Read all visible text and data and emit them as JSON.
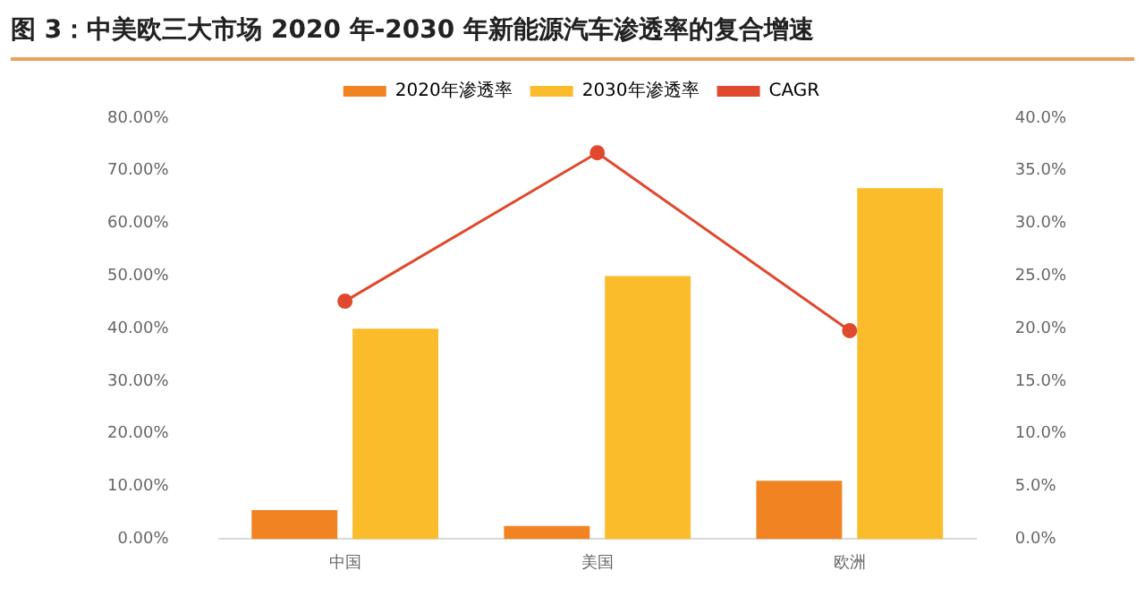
{
  "chart_data": {
    "type": "bar",
    "title": "图 3：中美欧三大市场 2020 年-2030 年新能源汽车渗透率的复合增速",
    "categories": [
      "中国",
      "美国",
      "欧洲"
    ],
    "series": [
      {
        "name": "2020年渗透率",
        "color": "#f28322",
        "values": [
          5.5,
          2.5,
          11.1
        ]
      },
      {
        "name": "2030年渗透率",
        "color": "#fbbc2c",
        "values": [
          40,
          50,
          66.7
        ]
      },
      {
        "name": "CAGR",
        "type": "line",
        "axis": "y2",
        "color": "#e0492d",
        "values": [
          22.6,
          36.7,
          19.8
        ]
      }
    ],
    "ylim": [
      0,
      80
    ],
    "yticks": [
      {
        "value": 0,
        "label": "0.00%"
      },
      {
        "value": 10,
        "label": "10.00%"
      },
      {
        "value": 20,
        "label": "20.00%"
      },
      {
        "value": 30,
        "label": "30.00%"
      },
      {
        "value": 40,
        "label": "40.00%"
      },
      {
        "value": 50,
        "label": "50.00%"
      },
      {
        "value": 60,
        "label": "60.00%"
      },
      {
        "value": 70,
        "label": "70.00%"
      },
      {
        "value": 80,
        "label": "80.00%"
      }
    ],
    "y2lim": [
      0,
      40
    ],
    "y2ticks": [
      {
        "value": 0,
        "label": "0.0%"
      },
      {
        "value": 5,
        "label": "5.0%"
      },
      {
        "value": 10,
        "label": "10.0%"
      },
      {
        "value": 15,
        "label": "15.0%"
      },
      {
        "value": 20,
        "label": "20.0%"
      },
      {
        "value": 25,
        "label": "25.0%"
      },
      {
        "value": 30,
        "label": "30.0%"
      },
      {
        "value": 35,
        "label": "35.0%"
      },
      {
        "value": 40,
        "label": "40.0%"
      }
    ],
    "grid": false,
    "legend": "top",
    "marker": "circle",
    "line_style": "solid"
  }
}
